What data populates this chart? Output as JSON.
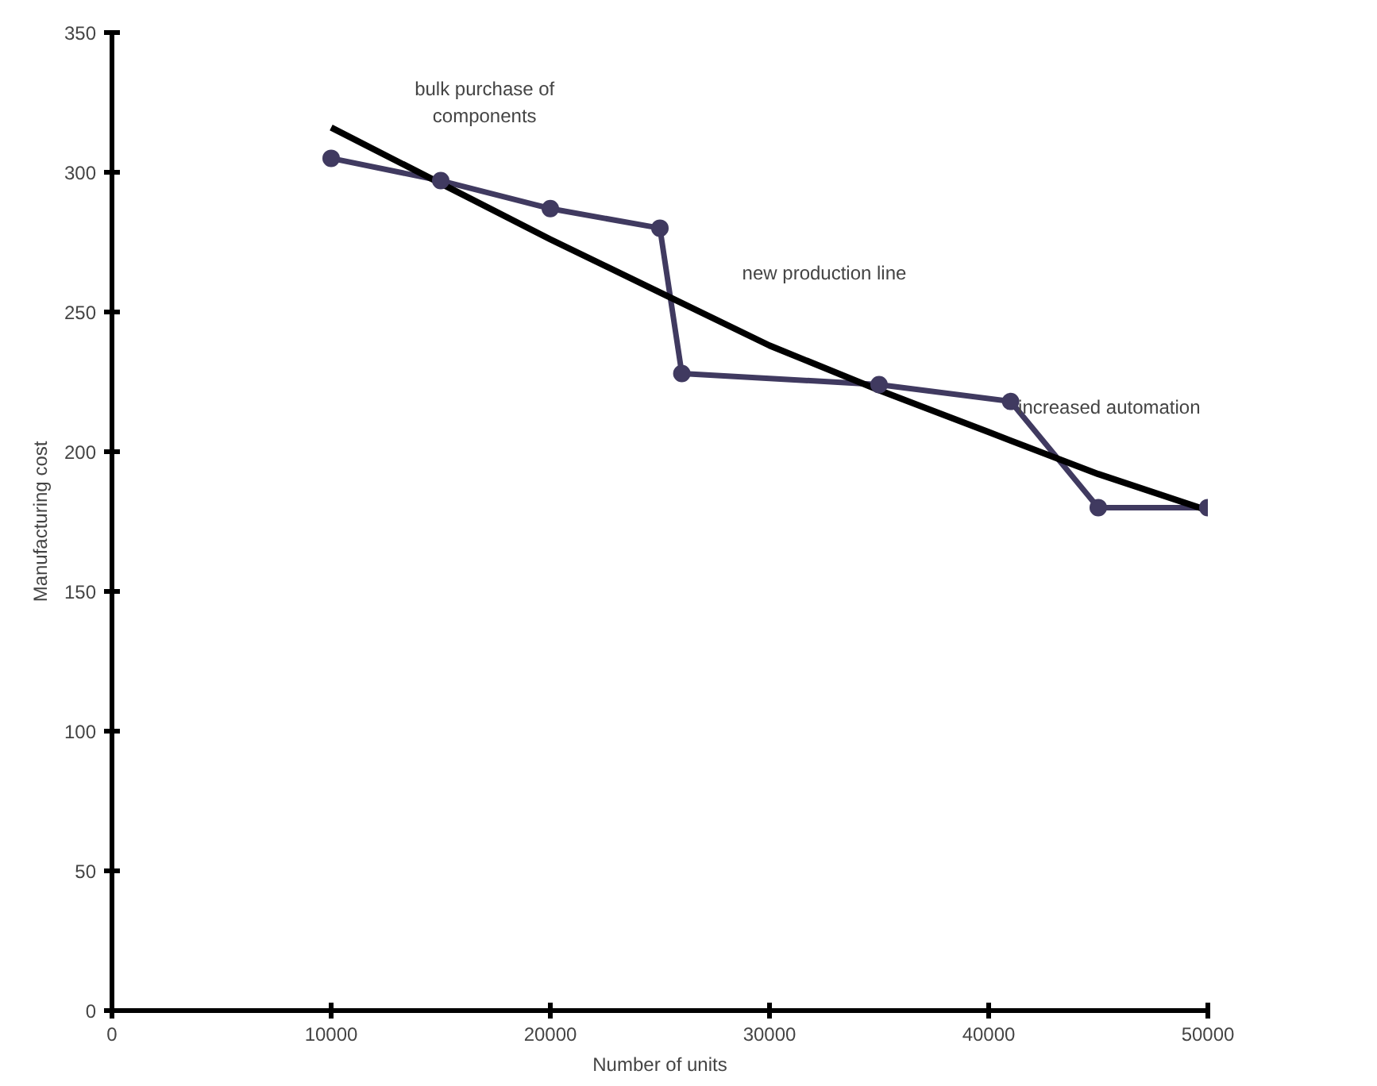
{
  "chart_data": {
    "type": "line",
    "xlabel": "Number of units",
    "ylabel": "Manufacturing cost",
    "xlim": [
      0,
      50000
    ],
    "ylim": [
      0,
      350
    ],
    "xticks": [
      0,
      10000,
      20000,
      30000,
      40000,
      50000
    ],
    "yticks": [
      0,
      50,
      100,
      150,
      200,
      250,
      300,
      350
    ],
    "grid": false,
    "marker": "circle",
    "series": [
      {
        "color": "#403a60",
        "x": [
          10000,
          15000,
          20000,
          25000,
          26000,
          35000,
          41000,
          45000,
          50000
        ],
        "values": [
          305,
          297,
          287,
          280,
          228,
          224,
          218,
          180,
          180
        ]
      },
      {
        "color": "#000000",
        "marker": "none",
        "x": [
          10000,
          15000,
          20000,
          25000,
          30000,
          35000,
          40000,
          45000,
          50000
        ],
        "values": [
          316,
          296,
          276,
          257,
          238,
          222,
          207,
          192,
          179
        ]
      }
    ],
    "annotations": [
      "bulk purchase of\ncomponents",
      "new production line",
      "increased automation"
    ]
  }
}
